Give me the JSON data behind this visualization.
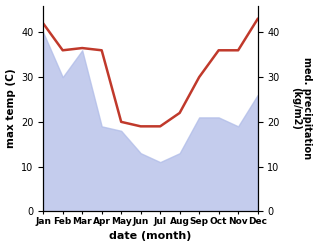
{
  "months": [
    "Jan",
    "Feb",
    "Mar",
    "Apr",
    "May",
    "Jun",
    "Jul",
    "Aug",
    "Sep",
    "Oct",
    "Nov",
    "Dec"
  ],
  "max_temp": [
    42,
    36,
    36.5,
    36,
    20,
    19,
    19,
    22,
    30,
    36,
    36,
    43
  ],
  "precipitation": [
    40,
    30,
    36,
    19,
    18,
    13,
    11,
    13,
    21,
    21,
    19,
    26
  ],
  "temp_color": "#c0392b",
  "precip_fill_color": "#b0bce8",
  "xlabel": "date (month)",
  "ylabel_left": "max temp (C)",
  "ylabel_right": "med. precipitation\n(kg/m2)",
  "ylim": [
    0,
    46
  ],
  "yticks": [
    0,
    10,
    20,
    30,
    40
  ],
  "right_ytick_labels": [
    "0",
    "10",
    "20",
    "30",
    "40"
  ],
  "background_color": "#ffffff"
}
